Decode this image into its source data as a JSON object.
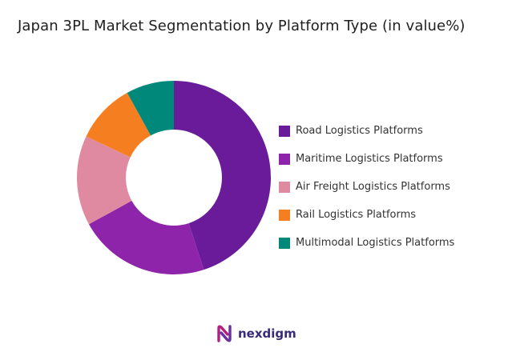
{
  "title": "Japan 3PL Market Segmentation by Platform Type (in value%)",
  "brand": {
    "name": "nexdigm",
    "logo_icon": "nexdigm-logo-icon",
    "colors": [
      "#b31f7d",
      "#6a2fa2"
    ]
  },
  "chart_data": {
    "type": "pie",
    "variant": "donut",
    "title": "Japan 3PL Market Segmentation by Platform Type (in value%)",
    "legend_position": "right",
    "start_angle_deg": 0,
    "direction": "clockwise",
    "series": [
      {
        "name": "Road Logistics Platforms",
        "value": 45,
        "color": "#6a1b9a"
      },
      {
        "name": "Maritime Logistics Platforms",
        "value": 22,
        "color": "#8e24aa"
      },
      {
        "name": "Air Freight Logistics Platforms",
        "value": 15,
        "color": "#e08aa1"
      },
      {
        "name": "Rail Logistics Platforms",
        "value": 10,
        "color": "#f57f20"
      },
      {
        "name": "Multimodal Logistics Platforms",
        "value": 8,
        "color": "#00897b"
      }
    ]
  }
}
